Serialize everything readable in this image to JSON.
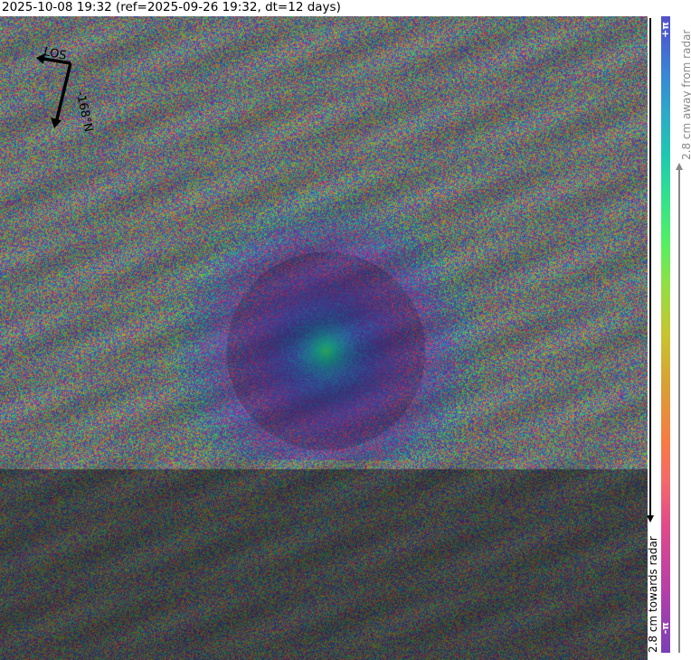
{
  "title": "2025-10-08 19:32 (ref=2025-09-26 19:32, dt=12 days)",
  "compass": {
    "los_label": "LOS",
    "heading_label": "-168°N",
    "icon": "los-heading-arrows-icon"
  },
  "colorbar": {
    "top_label": "+π",
    "bottom_label": "-π",
    "towards_label": "2.8 cm towards radar",
    "away_label": "2.8 cm away from radar",
    "colors": [
      "#7a3fb5",
      "#e04b8a",
      "#f77a45",
      "#c8c430",
      "#55f060",
      "#1fc8b0",
      "#3a85d5",
      "#5450c8"
    ]
  }
}
